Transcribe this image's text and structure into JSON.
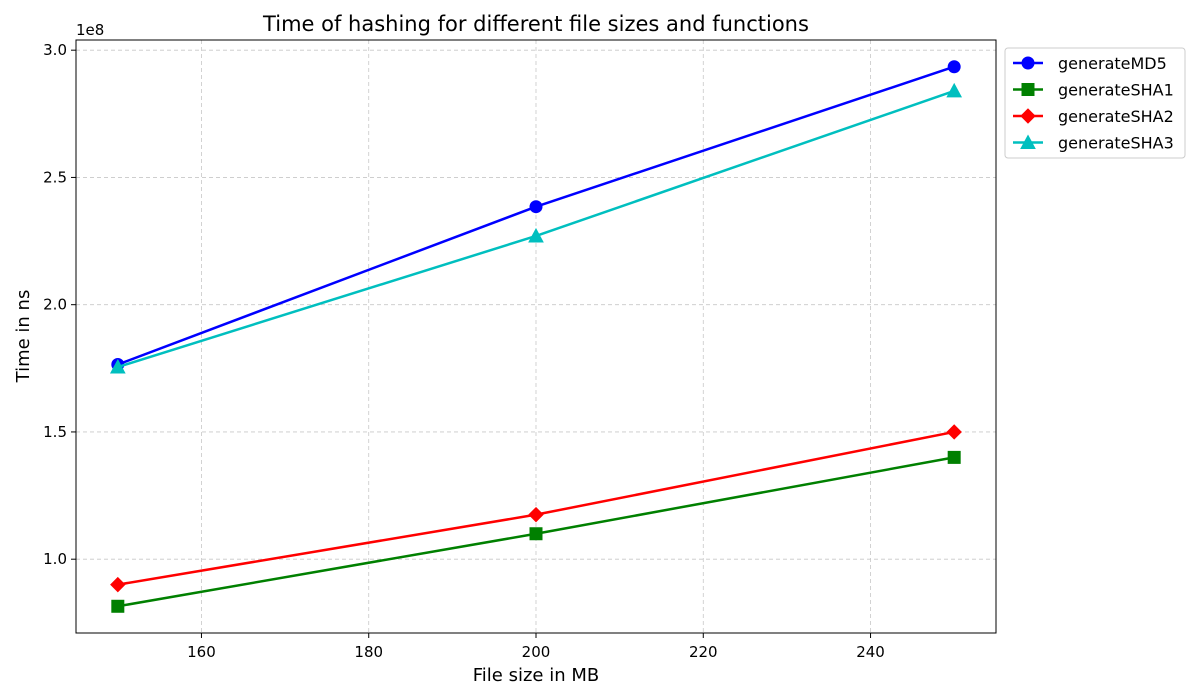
{
  "chart_data": {
    "type": "line",
    "title": "Time of hashing for different file sizes and functions",
    "xlabel": "File size in MB",
    "ylabel": "Time in ns",
    "y_offset_label": "1e8",
    "xlim": [
      145,
      255
    ],
    "ylim": [
      0.71,
      3.04
    ],
    "xticks": [
      160,
      180,
      200,
      220,
      240
    ],
    "yticks": [
      1.0,
      1.5,
      2.0,
      2.5,
      3.0
    ],
    "grid": true,
    "legend_position": "upper-right-outside",
    "x": [
      150,
      200,
      250
    ],
    "series": [
      {
        "name": "generateMD5",
        "values": [
          1.765,
          2.385,
          2.935
        ],
        "color": "#0000ff",
        "marker": "circle"
      },
      {
        "name": "generateSHA1",
        "values": [
          0.815,
          1.1,
          1.4
        ],
        "color": "#008000",
        "marker": "square"
      },
      {
        "name": "generateSHA2",
        "values": [
          0.9,
          1.175,
          1.5
        ],
        "color": "#ff0000",
        "marker": "diamond"
      },
      {
        "name": "generateSHA3",
        "values": [
          1.755,
          2.27,
          2.84
        ],
        "color": "#00bfbf",
        "marker": "triangle"
      }
    ]
  }
}
